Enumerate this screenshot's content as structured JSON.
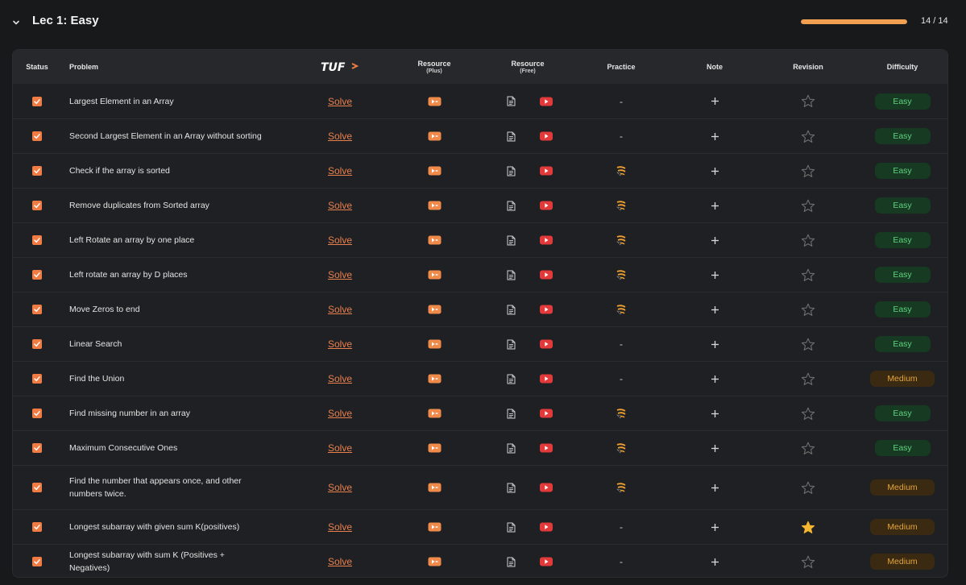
{
  "section": {
    "title": "Lec 1: Easy",
    "progress_text": "14 / 14",
    "progress_fraction": 1.0,
    "progress_color": "#f0a050"
  },
  "table": {
    "headers": {
      "status": "Status",
      "problem": "Problem",
      "tuf_logo": "TUF",
      "resource_plus": "Resource",
      "resource_plus_sub": "(Plus)",
      "resource_free": "Resource",
      "resource_free_sub": "(Free)",
      "practice": "Practice",
      "note": "Note",
      "revision": "Revision",
      "difficulty": "Difficulty"
    },
    "solve_label": "Solve",
    "rows": [
      {
        "name": "Largest Element in an Array",
        "practice": "dash",
        "starred": false,
        "difficulty": "Easy"
      },
      {
        "name": "Second Largest Element in an Array without sorting",
        "practice": "dash",
        "starred": false,
        "difficulty": "Easy"
      },
      {
        "name": "Check if the array is sorted",
        "practice": "icon",
        "starred": false,
        "difficulty": "Easy"
      },
      {
        "name": "Remove duplicates from Sorted array",
        "practice": "icon",
        "starred": false,
        "difficulty": "Easy"
      },
      {
        "name": "Left Rotate an array by one place",
        "practice": "icon",
        "starred": false,
        "difficulty": "Easy"
      },
      {
        "name": "Left rotate an array by D places",
        "practice": "icon",
        "starred": false,
        "difficulty": "Easy"
      },
      {
        "name": "Move Zeros to end",
        "practice": "icon",
        "starred": false,
        "difficulty": "Easy"
      },
      {
        "name": "Linear Search",
        "practice": "dash",
        "starred": false,
        "difficulty": "Easy"
      },
      {
        "name": "Find the Union",
        "practice": "dash",
        "starred": false,
        "difficulty": "Medium"
      },
      {
        "name": "Find missing number in an array",
        "practice": "icon",
        "starred": false,
        "difficulty": "Easy"
      },
      {
        "name": "Maximum Consecutive Ones",
        "practice": "icon",
        "starred": false,
        "difficulty": "Easy"
      },
      {
        "name": "Find the number that appears once, and other numbers twice.",
        "practice": "icon",
        "starred": false,
        "difficulty": "Medium"
      },
      {
        "name": "Longest subarray with given sum K(positives)",
        "practice": "dash",
        "starred": true,
        "difficulty": "Medium"
      },
      {
        "name": "Longest subarray with sum K (Positives + Negatives)",
        "practice": "dash",
        "starred": false,
        "difficulty": "Medium"
      }
    ],
    "dash_text": "-"
  },
  "colors": {
    "checkbox": "#f07b43",
    "solve_link": "#e8804e",
    "easy_bg": "#163a22",
    "easy_text": "#5fd37f",
    "medium_bg": "#3a2a12",
    "medium_text": "#e4a43c",
    "star_active": "#f5b731",
    "youtube": "#e23a3a",
    "plus_video": "#f08a4b"
  },
  "icons": {
    "chevron": "chevron-down-icon",
    "status": "checkbox-checked-icon",
    "resource_plus": "video-play-icon",
    "article": "article-icon",
    "youtube": "youtube-icon",
    "practice": "coding-ninjas-icon",
    "note": "plus-icon",
    "revision": "star-icon"
  }
}
